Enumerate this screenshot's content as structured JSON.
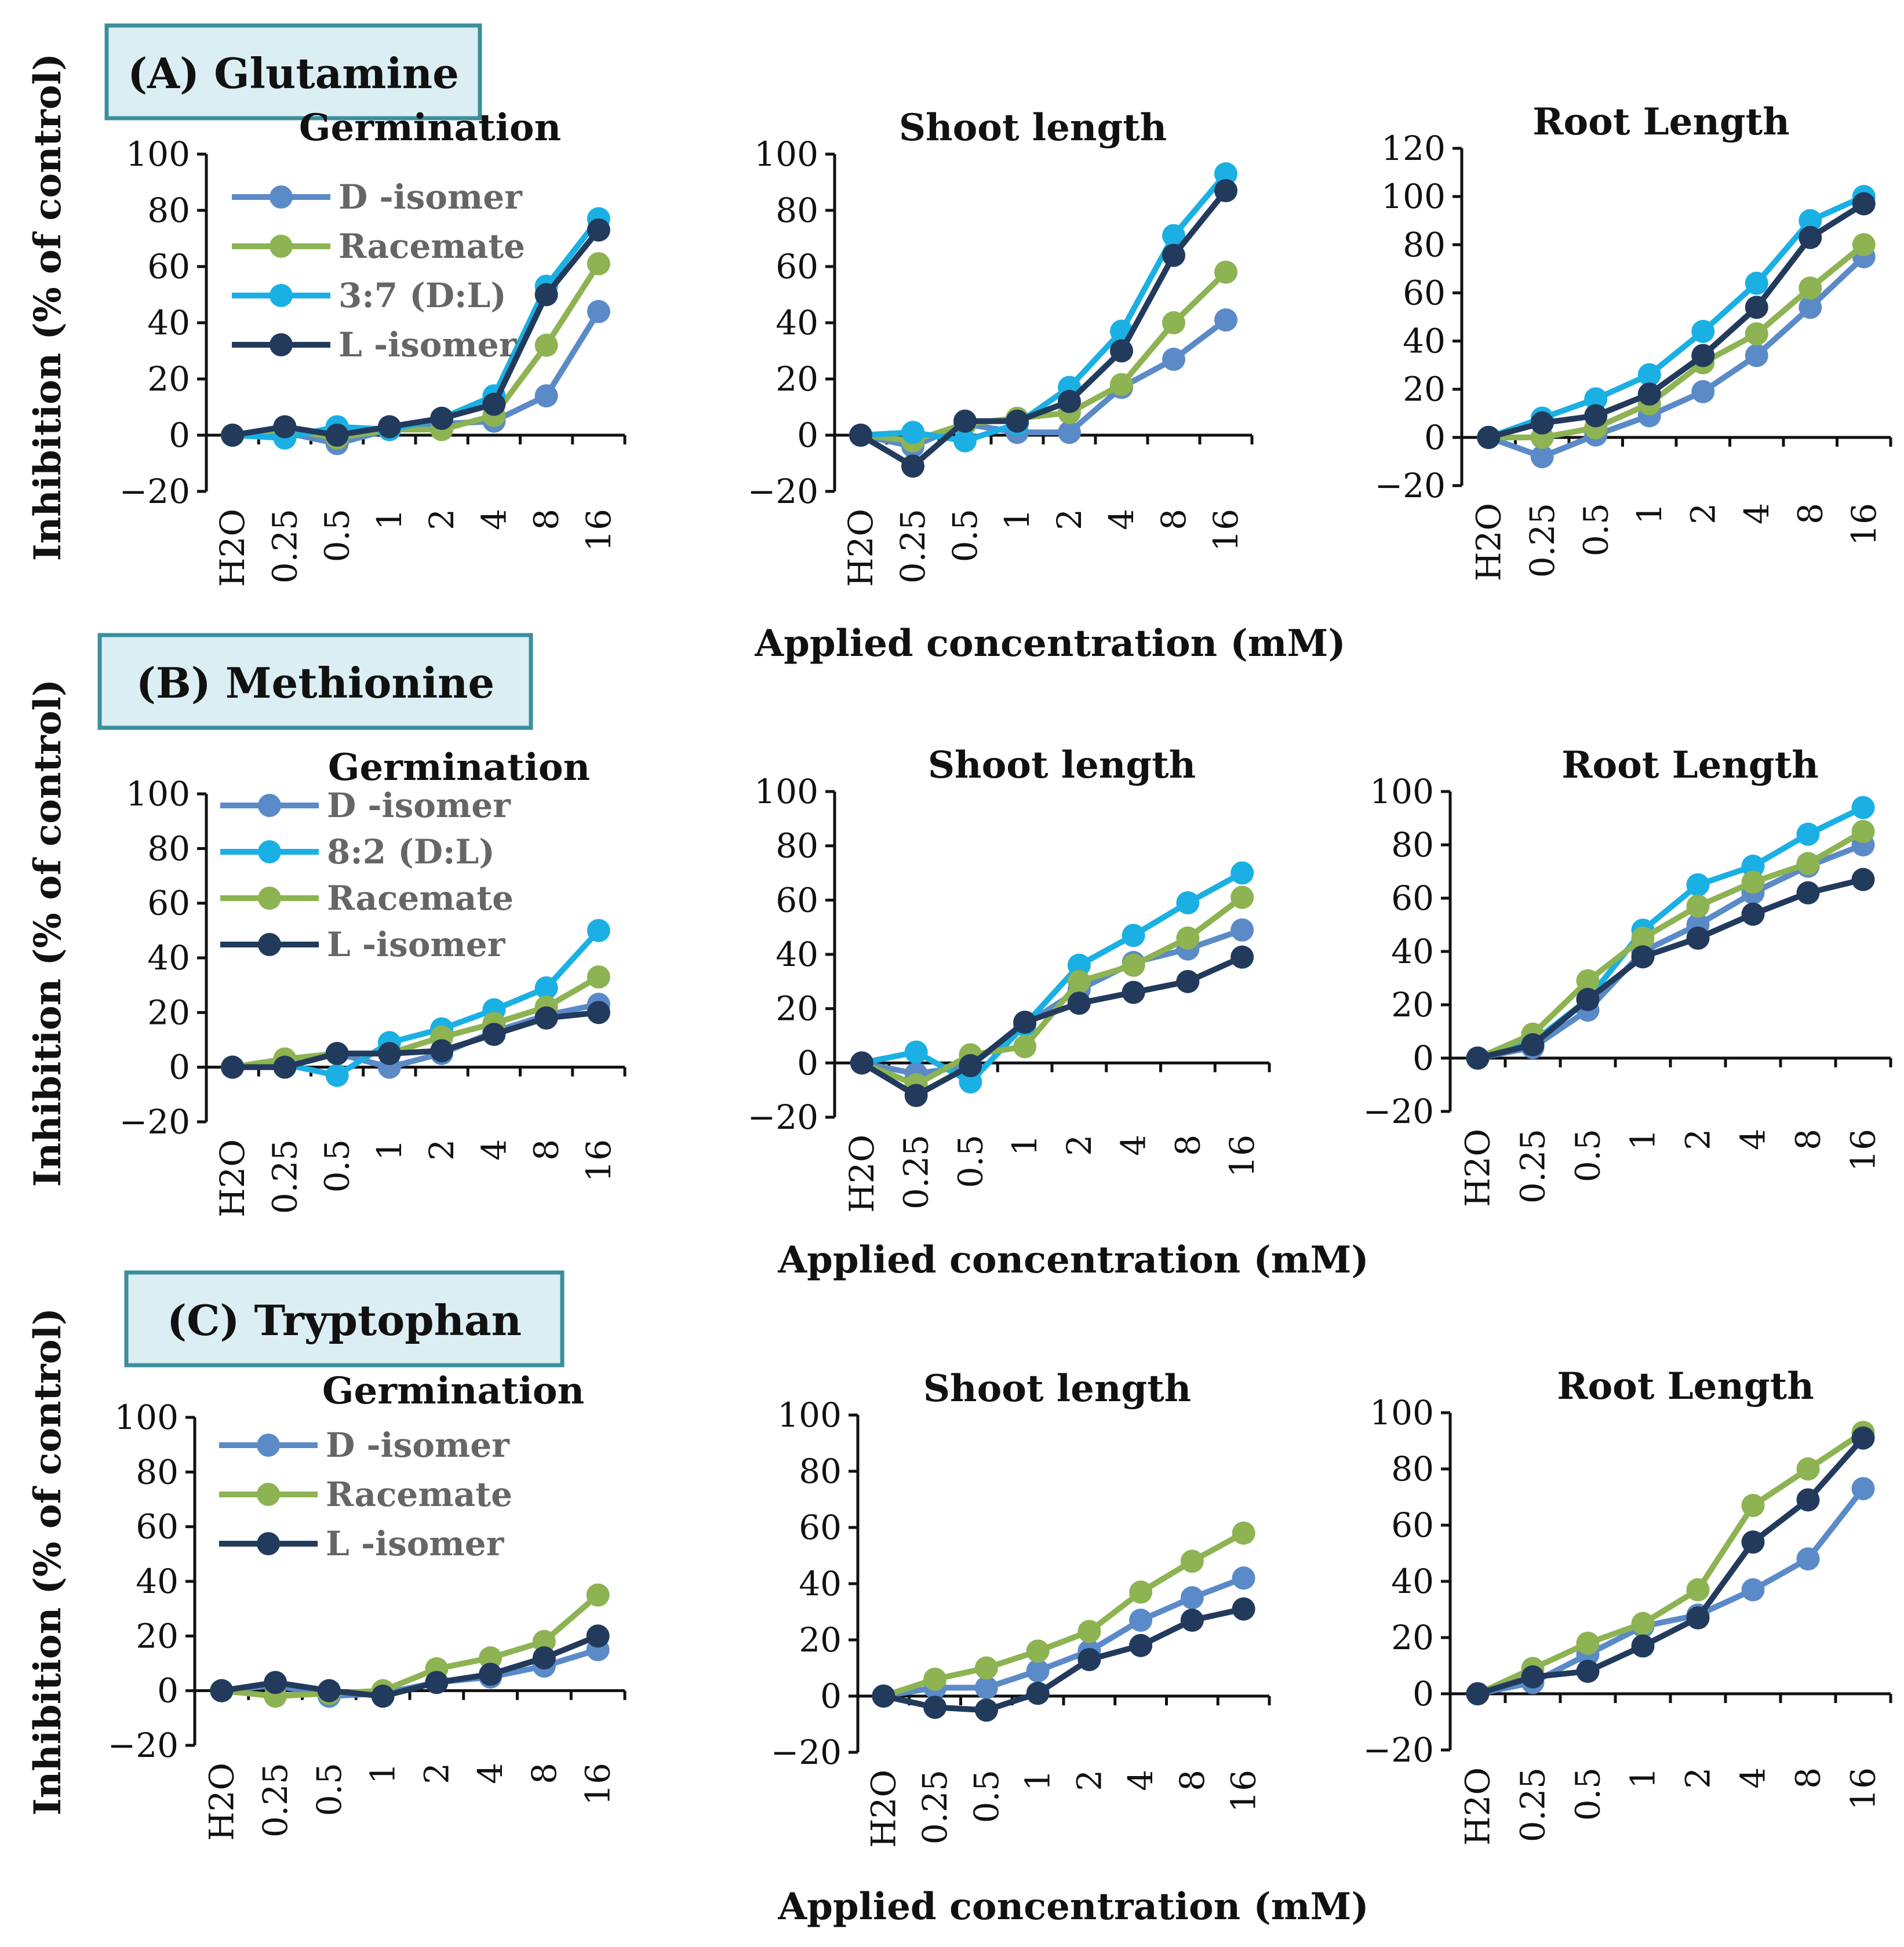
{
  "x_categories": [
    "H2O",
    "0.25",
    "0.5",
    "1",
    "2",
    "4",
    "8",
    "16"
  ],
  "y_axis_label": "Inhibition (% of control)",
  "x_axis_label": "Applied concentration (mM)",
  "colors": {
    "d_isomer": "#5b8ac8",
    "racemate": "#8db352",
    "mix": "#1ab0e4",
    "l_isomer": "#223a5c",
    "axis": "#111111"
  },
  "chart_data": [
    {
      "group": "A",
      "label": "(A) Glutamine",
      "subplots": [
        {
          "type": "line",
          "title": "Germination",
          "ylim": [
            -20,
            100
          ],
          "ticks": [
            -20,
            0,
            20,
            40,
            60,
            80,
            100
          ],
          "legend": [
            "d",
            "rac",
            "mix",
            "l"
          ],
          "series": [
            {
              "key": "d",
              "label": "D -isomer",
              "color": "#5b8ac8",
              "values": [
                0,
                1,
                -3,
                2,
                4,
                5,
                14,
                44
              ]
            },
            {
              "key": "rac",
              "label": "Racemate",
              "color": "#8db352",
              "values": [
                0,
                2,
                -1,
                2,
                2,
                7,
                32,
                61
              ]
            },
            {
              "key": "mix",
              "label": "3:7 (D:L)",
              "color": "#1ab0e4",
              "values": [
                0,
                -1,
                3,
                2,
                6,
                14,
                53,
                77
              ]
            },
            {
              "key": "l",
              "label": "L -isomer",
              "color": "#223a5c",
              "values": [
                0,
                3,
                0,
                3,
                6,
                11,
                50,
                73
              ]
            }
          ]
        },
        {
          "type": "line",
          "title": "Shoot length",
          "ylim": [
            -20,
            100
          ],
          "ticks": [
            -20,
            0,
            20,
            40,
            60,
            80,
            100
          ],
          "legend": [],
          "series": [
            {
              "key": "d",
              "label": "D -isomer",
              "color": "#5b8ac8",
              "values": [
                0,
                -4,
                4,
                1,
                1,
                17,
                27,
                41
              ]
            },
            {
              "key": "rac",
              "label": "Racemate",
              "color": "#8db352",
              "values": [
                0,
                -2,
                4,
                6,
                8,
                18,
                40,
                58
              ]
            },
            {
              "key": "mix",
              "label": "3:7 (D:L)",
              "color": "#1ab0e4",
              "values": [
                0,
                1,
                -2,
                4,
                17,
                37,
                71,
                93
              ]
            },
            {
              "key": "l",
              "label": "L -isomer",
              "color": "#223a5c",
              "values": [
                0,
                -11,
                5,
                5,
                12,
                30,
                64,
                87
              ]
            }
          ]
        },
        {
          "type": "line",
          "title": "Root Length",
          "ylim": [
            -20,
            120
          ],
          "ticks": [
            -20,
            0,
            20,
            40,
            60,
            80,
            100,
            120
          ],
          "legend": [],
          "series": [
            {
              "key": "d",
              "label": "D -isomer",
              "color": "#5b8ac8",
              "values": [
                0,
                -8,
                1,
                9,
                19,
                34,
                54,
                75
              ]
            },
            {
              "key": "rac",
              "label": "Racemate",
              "color": "#8db352",
              "values": [
                0,
                0,
                4,
                14,
                31,
                43,
                62,
                80
              ]
            },
            {
              "key": "mix",
              "label": "3:7 (D:L)",
              "color": "#1ab0e4",
              "values": [
                0,
                8,
                16,
                26,
                44,
                64,
                90,
                100
              ]
            },
            {
              "key": "l",
              "label": "L -isomer",
              "color": "#223a5c",
              "values": [
                0,
                6,
                9,
                18,
                34,
                54,
                83,
                97
              ]
            }
          ]
        }
      ]
    },
    {
      "group": "B",
      "label": "(B) Methionine",
      "subplots": [
        {
          "type": "line",
          "title": "Germination",
          "ylim": [
            -20,
            100
          ],
          "ticks": [
            -20,
            0,
            20,
            40,
            60,
            80,
            100
          ],
          "legend": [
            "d",
            "mix",
            "rac",
            "l"
          ],
          "series": [
            {
              "key": "d",
              "label": "D -isomer",
              "color": "#5b8ac8",
              "values": [
                0,
                1,
                5,
                0,
                5,
                13,
                19,
                23
              ]
            },
            {
              "key": "mix",
              "label": "8:2 (D:L)",
              "color": "#1ab0e4",
              "values": [
                0,
                1,
                -3,
                9,
                14,
                21,
                29,
                50
              ]
            },
            {
              "key": "rac",
              "label": "Racemate",
              "color": "#8db352",
              "values": [
                0,
                3,
                5,
                5,
                11,
                16,
                22,
                33
              ]
            },
            {
              "key": "l",
              "label": "L -isomer",
              "color": "#223a5c",
              "values": [
                0,
                0,
                5,
                5,
                6,
                12,
                18,
                20
              ]
            }
          ]
        },
        {
          "type": "line",
          "title": "Shoot length",
          "ylim": [
            -20,
            100
          ],
          "ticks": [
            -20,
            0,
            20,
            40,
            60,
            80,
            100
          ],
          "legend": [],
          "series": [
            {
              "key": "d",
              "label": "D -isomer",
              "color": "#5b8ac8",
              "values": [
                0,
                -4,
                -1,
                14,
                27,
                37,
                42,
                49
              ]
            },
            {
              "key": "mix",
              "label": "8:2 (D:L)",
              "color": "#1ab0e4",
              "values": [
                0,
                4,
                -7,
                14,
                36,
                47,
                59,
                70
              ]
            },
            {
              "key": "rac",
              "label": "Racemate",
              "color": "#8db352",
              "values": [
                0,
                -8,
                3,
                6,
                30,
                36,
                46,
                61
              ]
            },
            {
              "key": "l",
              "label": "L -isomer",
              "color": "#223a5c",
              "values": [
                0,
                -12,
                -1,
                15,
                22,
                26,
                30,
                39
              ]
            }
          ]
        },
        {
          "type": "line",
          "title": "Root Length",
          "ylim": [
            -20,
            100
          ],
          "ticks": [
            -20,
            0,
            20,
            40,
            60,
            80,
            100
          ],
          "legend": [],
          "series": [
            {
              "key": "d",
              "label": "D -isomer",
              "color": "#5b8ac8",
              "values": [
                0,
                4,
                18,
                40,
                50,
                62,
                72,
                80
              ]
            },
            {
              "key": "mix",
              "label": "8:2 (D:L)",
              "color": "#1ab0e4",
              "values": [
                0,
                6,
                22,
                48,
                65,
                72,
                84,
                94
              ]
            },
            {
              "key": "rac",
              "label": "Racemate",
              "color": "#8db352",
              "values": [
                0,
                9,
                29,
                45,
                57,
                66,
                73,
                85
              ]
            },
            {
              "key": "l",
              "label": "L -isomer",
              "color": "#223a5c",
              "values": [
                0,
                5,
                22,
                38,
                45,
                54,
                62,
                67
              ]
            }
          ]
        }
      ]
    },
    {
      "group": "C",
      "label": "(C) Tryptophan",
      "subplots": [
        {
          "type": "line",
          "title": "Germination",
          "ylim": [
            -20,
            100
          ],
          "ticks": [
            -20,
            0,
            20,
            40,
            60,
            80,
            100
          ],
          "legend": [
            "d",
            "rac",
            "l"
          ],
          "series": [
            {
              "key": "d",
              "label": "D -isomer",
              "color": "#5b8ac8",
              "values": [
                0,
                2,
                -2,
                -1,
                3,
                5,
                9,
                15
              ]
            },
            {
              "key": "rac",
              "label": "Racemate",
              "color": "#8db352",
              "values": [
                0,
                -2,
                -1,
                0,
                8,
                12,
                18,
                35
              ]
            },
            {
              "key": "l",
              "label": "L -isomer",
              "color": "#223a5c",
              "values": [
                0,
                3,
                0,
                -2,
                3,
                6,
                12,
                20
              ]
            }
          ]
        },
        {
          "type": "line",
          "title": "Shoot length",
          "ylim": [
            -20,
            100
          ],
          "ticks": [
            -20,
            0,
            20,
            40,
            60,
            80,
            100
          ],
          "legend": [],
          "series": [
            {
              "key": "d",
              "label": "D -isomer",
              "color": "#5b8ac8",
              "values": [
                0,
                3,
                3,
                9,
                16,
                27,
                35,
                42
              ]
            },
            {
              "key": "rac",
              "label": "Racemate",
              "color": "#8db352",
              "values": [
                0,
                6,
                10,
                16,
                23,
                37,
                48,
                58
              ]
            },
            {
              "key": "l",
              "label": "L -isomer",
              "color": "#223a5c",
              "values": [
                0,
                -4,
                -5,
                1,
                13,
                18,
                27,
                31
              ]
            }
          ]
        },
        {
          "type": "line",
          "title": "Root Length",
          "ylim": [
            -20,
            100
          ],
          "ticks": [
            -20,
            0,
            20,
            40,
            60,
            80,
            100
          ],
          "legend": [],
          "series": [
            {
              "key": "d",
              "label": "D -isomer",
              "color": "#5b8ac8",
              "values": [
                0,
                4,
                14,
                24,
                28,
                37,
                48,
                73
              ]
            },
            {
              "key": "rac",
              "label": "Racemate",
              "color": "#8db352",
              "values": [
                0,
                9,
                18,
                25,
                37,
                67,
                80,
                93
              ]
            },
            {
              "key": "l",
              "label": "L -isomer",
              "color": "#223a5c",
              "values": [
                0,
                6,
                8,
                17,
                27,
                54,
                69,
                91
              ]
            }
          ]
        }
      ]
    }
  ]
}
